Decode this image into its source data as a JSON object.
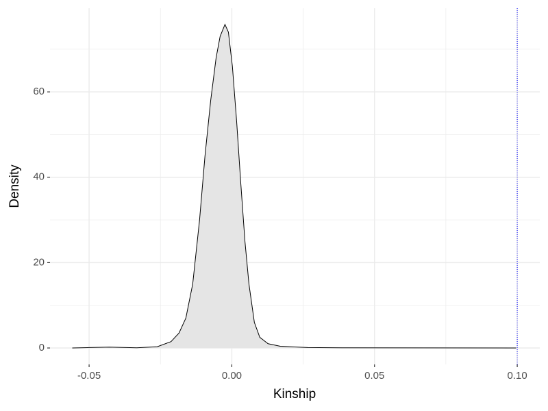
{
  "chart_data": {
    "type": "density",
    "x_label": "Kinship",
    "y_label": "Density",
    "x": [
      -0.0559,
      -0.05,
      -0.0429,
      -0.0333,
      -0.0261,
      -0.0213,
      -0.0185,
      -0.0161,
      -0.0137,
      -0.0113,
      -0.0094,
      -0.0074,
      -0.0055,
      -0.0041,
      -0.0024,
      -0.0012,
      0.0002,
      0.0017,
      0.0031,
      0.0046,
      0.006,
      0.0079,
      0.0098,
      0.0127,
      0.017,
      0.0266,
      0.0386,
      0.0996
    ],
    "values": [
      0,
      0.1,
      0.2,
      0.05,
      0.3,
      1.5,
      3.5,
      7,
      15,
      30,
      45,
      58,
      68,
      73,
      75.8,
      74,
      66,
      53,
      39,
      25,
      15,
      6,
      2.5,
      1,
      0.4,
      0.1,
      0.05,
      0
    ],
    "fill": "#e5e5e5",
    "line_color": "#000000",
    "xlim": [
      -0.0637,
      0.1079
    ],
    "ylim": [
      -3.85,
      79.6
    ],
    "xticks": [
      -0.05,
      {
        "value": 0,
        "label": "0.00"
      },
      0.05,
      {
        "value": 0.1,
        "label": "0.10"
      }
    ],
    "yticks": [
      0,
      20,
      40,
      60
    ],
    "x_minor_ticks": [
      -0.025,
      0.025,
      0.075
    ],
    "y_minor_ticks": [
      10,
      30,
      50,
      70
    ],
    "grid": true,
    "vline": {
      "x": 0.1,
      "color": "#0000ff"
    }
  }
}
